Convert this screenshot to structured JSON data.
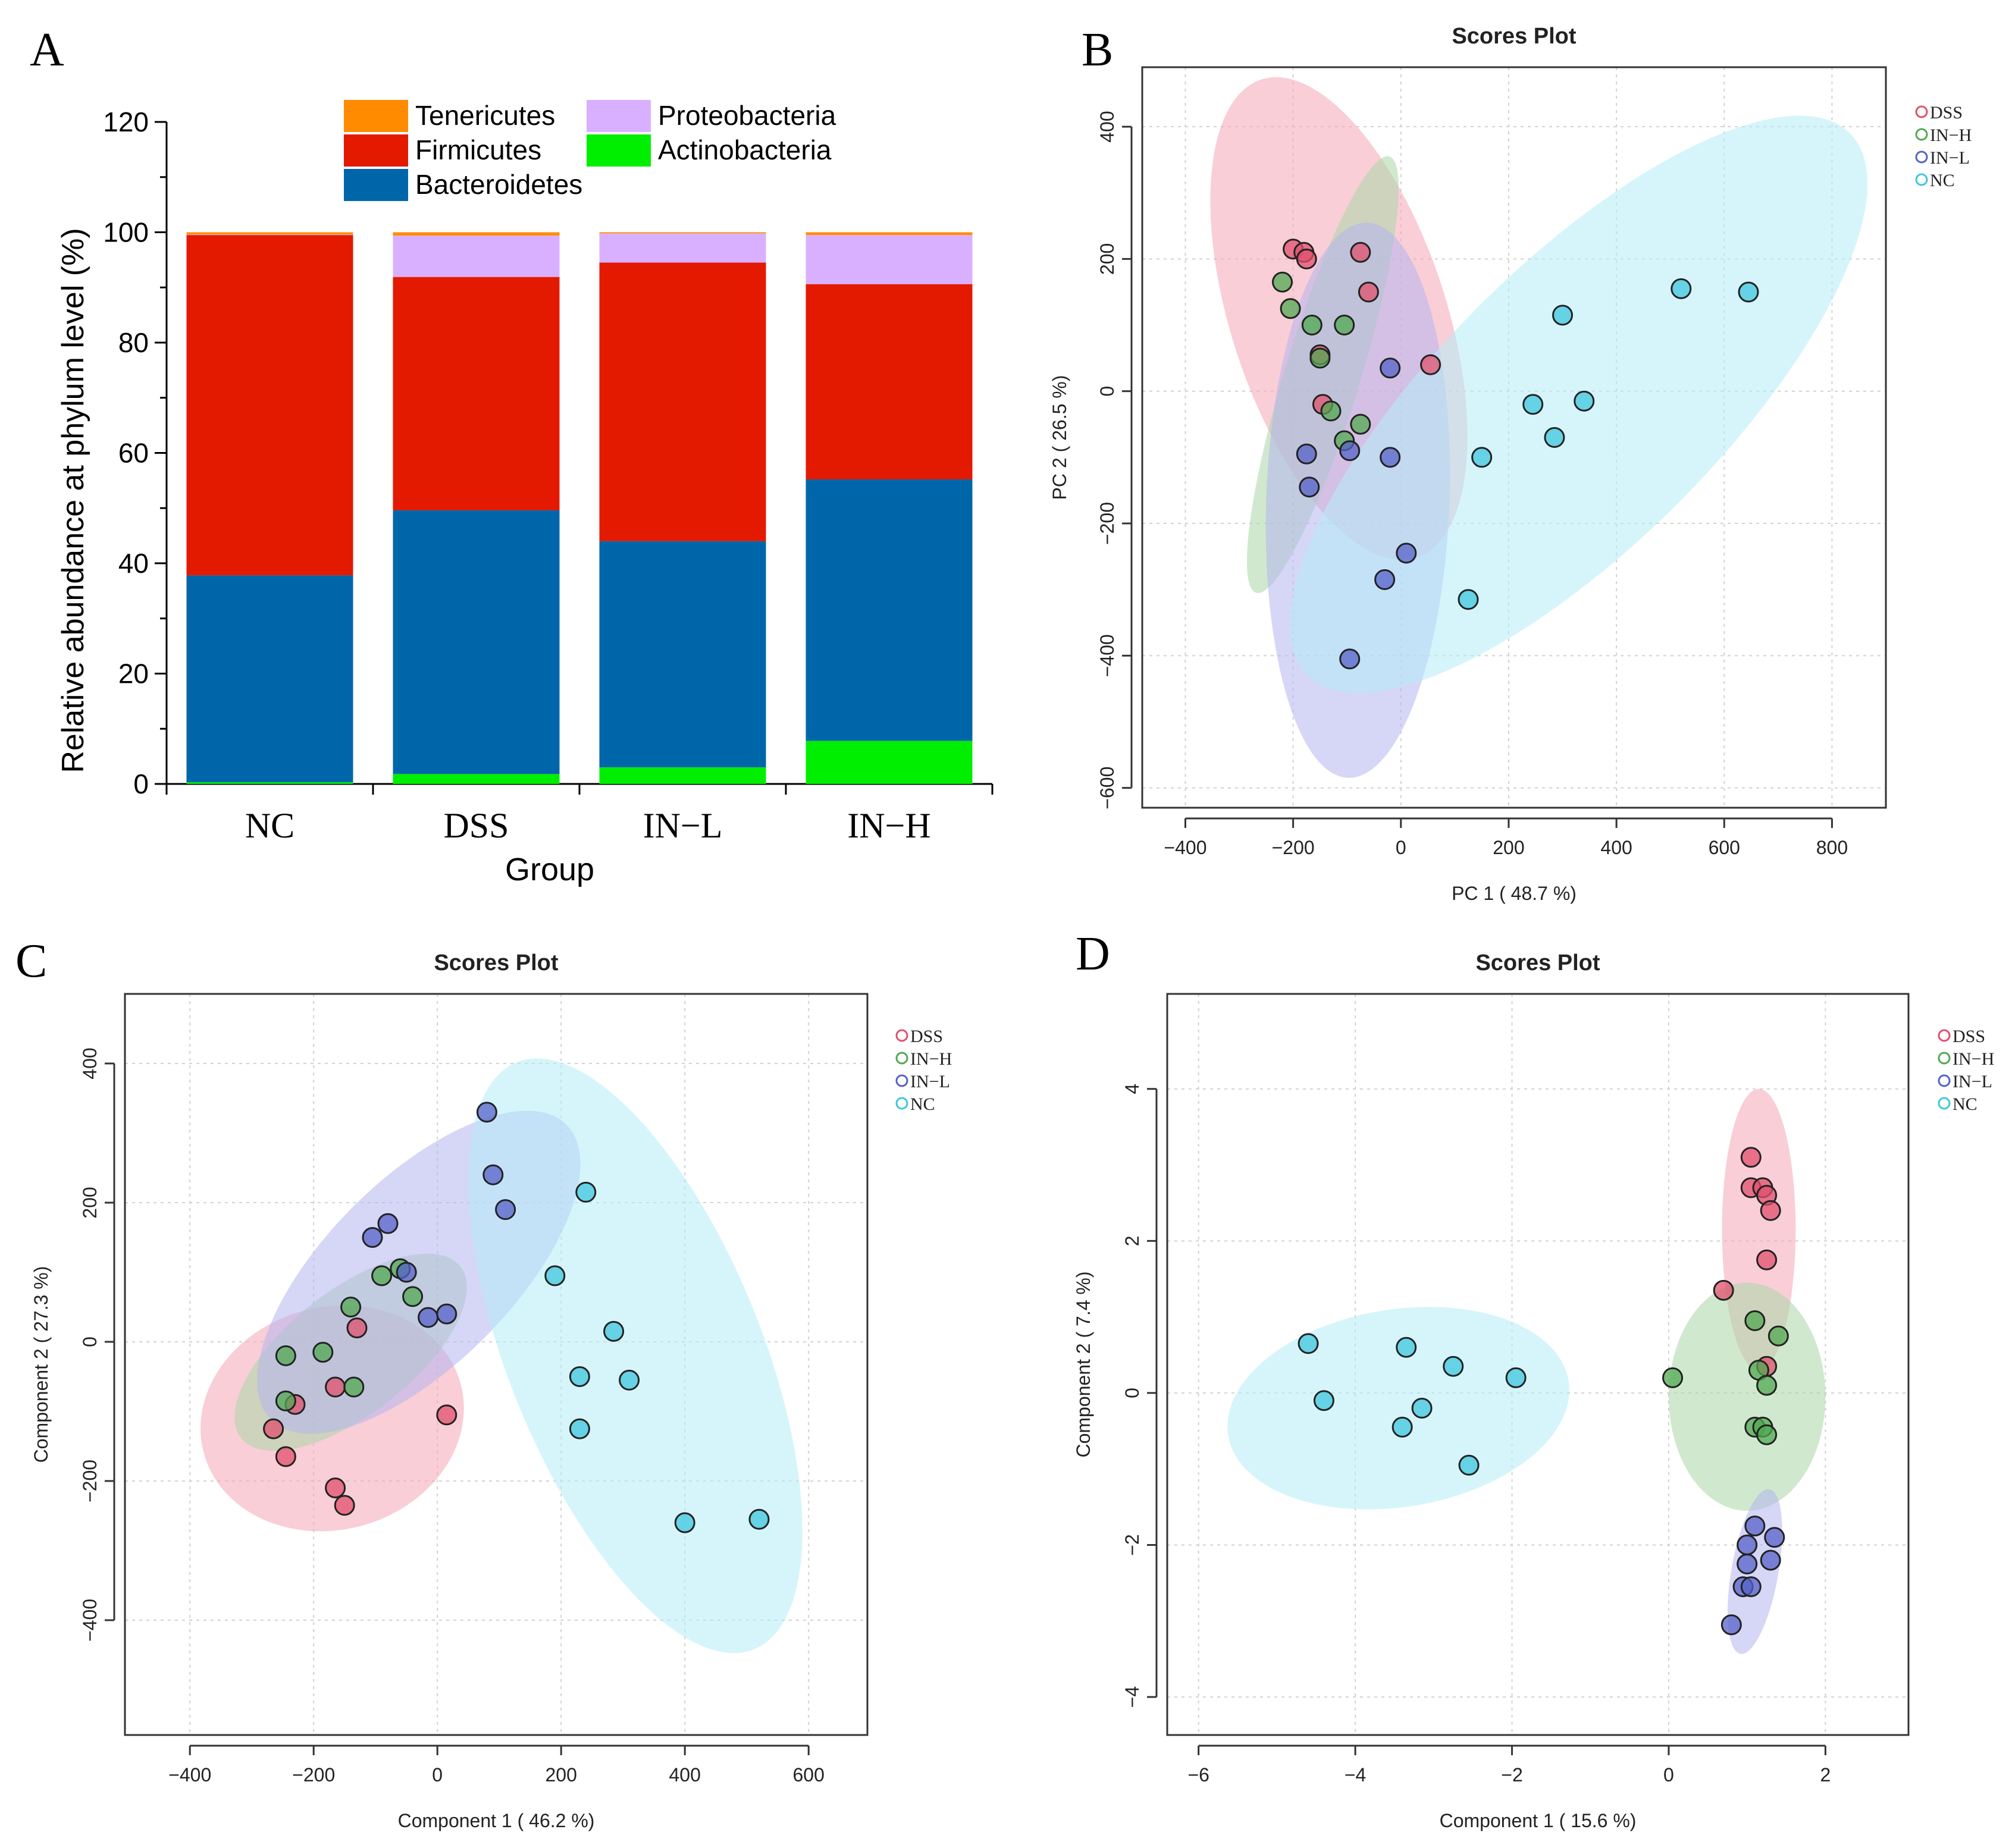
{
  "panel_labels": [
    "A",
    "B",
    "C",
    "D"
  ],
  "chart_data": [
    {
      "panel": "A",
      "type": "bar",
      "stacked": true,
      "xlabel": "Group",
      "ylabel": "Relative abundance at phylum level (%)",
      "ylim": [
        0,
        120
      ],
      "yticks": [
        0,
        20,
        40,
        60,
        80,
        100,
        120
      ],
      "categories": [
        "NC",
        "DSS",
        "IN−L",
        "IN−H"
      ],
      "legend": [
        "Tenericutes",
        "Proteobacteria",
        "Firmicutes",
        "Actinobacteria",
        "Bacteroidetes"
      ],
      "series": [
        {
          "name": "Actinobacteria",
          "color": "#00ee00",
          "values": [
            0.3,
            1.8,
            3.0,
            7.8
          ]
        },
        {
          "name": "Bacteroidetes",
          "color": "#0066aa",
          "values": [
            37.5,
            47.8,
            41.0,
            47.4
          ]
        },
        {
          "name": "Firmicutes",
          "color": "#e31a00",
          "values": [
            61.7,
            42.3,
            50.5,
            35.4
          ]
        },
        {
          "name": "Proteobacteria",
          "color": "#d9b0ff",
          "values": [
            0.1,
            7.5,
            5.3,
            8.9
          ]
        },
        {
          "name": "Tenericutes",
          "color": "#ff8c00",
          "values": [
            0.4,
            0.6,
            0.2,
            0.5
          ]
        }
      ]
    },
    {
      "panel": "B",
      "type": "scatter",
      "title": "Scores Plot",
      "xlabel": "PC 1 ( 48.7 %)",
      "ylabel": "PC 2 ( 26.5 %)",
      "xlim": [
        -480,
        900
      ],
      "ylim": [
        -630,
        490
      ],
      "xticks": [
        -400,
        -200,
        0,
        200,
        400,
        600,
        800
      ],
      "yticks": [
        -600,
        -400,
        -200,
        0,
        200,
        400
      ],
      "grid": true,
      "legend_position": "top-right",
      "legend": [
        "DSS",
        "IN−H",
        "IN−L",
        "NC"
      ],
      "series": [
        {
          "name": "DSS",
          "color": "#e0506e",
          "fill": "#f4a6b7",
          "ellipse": {
            "cx": -115,
            "cy": 110,
            "rx": 200,
            "ry": 380,
            "angle_deg": -18
          },
          "points": [
            [
              -200,
              215
            ],
            [
              -180,
              210
            ],
            [
              -175,
              200
            ],
            [
              -75,
              210
            ],
            [
              -60,
              150
            ],
            [
              -150,
              55
            ],
            [
              -145,
              -20
            ],
            [
              55,
              40
            ]
          ]
        },
        {
          "name": "IN−H",
          "color": "#52a852",
          "fill": "#a9d7a6",
          "ellipse": {
            "cx": -145,
            "cy": 25,
            "rx": 70,
            "ry": 345,
            "angle_deg": 17
          },
          "points": [
            [
              -220,
              165
            ],
            [
              -205,
              125
            ],
            [
              -165,
              100
            ],
            [
              -105,
              100
            ],
            [
              -150,
              50
            ],
            [
              -130,
              -30
            ],
            [
              -105,
              -75
            ],
            [
              -75,
              -50
            ]
          ]
        },
        {
          "name": "IN−L",
          "color": "#5561c8",
          "fill": "#b4b4ee",
          "ellipse": {
            "cx": -80,
            "cy": -165,
            "rx": 170,
            "ry": 420,
            "angle_deg": 2
          },
          "points": [
            [
              -20,
              35
            ],
            [
              -175,
              -95
            ],
            [
              -170,
              -145
            ],
            [
              -95,
              -90
            ],
            [
              -20,
              -100
            ],
            [
              10,
              -245
            ],
            [
              -30,
              -285
            ],
            [
              -95,
              -405
            ]
          ]
        },
        {
          "name": "NC",
          "color": "#3fc6de",
          "fill": "#b4ecf7",
          "ellipse": {
            "cx": 330,
            "cy": -20,
            "rx": 260,
            "ry": 580,
            "angle_deg": 45
          },
          "points": [
            [
              520,
              155
            ],
            [
              645,
              150
            ],
            [
              300,
              115
            ],
            [
              245,
              -20
            ],
            [
              340,
              -15
            ],
            [
              285,
              -70
            ],
            [
              150,
              -100
            ],
            [
              125,
              -315
            ]
          ]
        }
      ]
    },
    {
      "panel": "C",
      "type": "scatter",
      "title": "Scores Plot",
      "xlabel": "Component 1 ( 46.2 %)",
      "ylabel": "Component 2 ( 27.3 %)",
      "xlim": [
        -505,
        695
      ],
      "ylim": [
        -565,
        500
      ],
      "xticks": [
        -400,
        -200,
        0,
        200,
        400,
        600
      ],
      "yticks": [
        -400,
        -200,
        0,
        200,
        400
      ],
      "grid": true,
      "legend_position": "top-right",
      "legend": [
        "DSS",
        "IN−H",
        "IN−L",
        "NC"
      ],
      "series": [
        {
          "name": "DSS",
          "color": "#e0506e",
          "fill": "#f4a6b7",
          "ellipse": {
            "cx": -170,
            "cy": -110,
            "rx": 215,
            "ry": 160,
            "angle_deg": -15
          },
          "points": [
            [
              -130,
              20
            ],
            [
              -165,
              -65
            ],
            [
              -230,
              -90
            ],
            [
              -265,
              -125
            ],
            [
              -245,
              -165
            ],
            [
              -165,
              -210
            ],
            [
              -150,
              -235
            ],
            [
              15,
              -105
            ]
          ]
        },
        {
          "name": "IN−H",
          "color": "#52a852",
          "fill": "#a9d7a6",
          "ellipse": {
            "cx": -140,
            "cy": -15,
            "rx": 100,
            "ry": 200,
            "angle_deg": 52
          },
          "points": [
            [
              -60,
              105
            ],
            [
              -90,
              95
            ],
            [
              -40,
              65
            ],
            [
              -140,
              50
            ],
            [
              -185,
              -15
            ],
            [
              -245,
              -20
            ],
            [
              -135,
              -65
            ],
            [
              -245,
              -85
            ]
          ]
        },
        {
          "name": "IN−L",
          "color": "#5561c8",
          "fill": "#b4b4ee",
          "ellipse": {
            "cx": -30,
            "cy": 100,
            "rx": 150,
            "ry": 300,
            "angle_deg": 45
          },
          "points": [
            [
              80,
              330
            ],
            [
              90,
              240
            ],
            [
              110,
              190
            ],
            [
              -80,
              170
            ],
            [
              -105,
              150
            ],
            [
              -50,
              100
            ],
            [
              -15,
              35
            ],
            [
              15,
              40
            ]
          ]
        },
        {
          "name": "NC",
          "color": "#3fc6de",
          "fill": "#b4ecf7",
          "ellipse": {
            "cx": 320,
            "cy": -20,
            "rx": 205,
            "ry": 455,
            "angle_deg": -22
          },
          "points": [
            [
              240,
              215
            ],
            [
              190,
              95
            ],
            [
              285,
              15
            ],
            [
              230,
              -50
            ],
            [
              310,
              -55
            ],
            [
              230,
              -125
            ],
            [
              400,
              -260
            ],
            [
              520,
              -255
            ]
          ]
        }
      ]
    },
    {
      "panel": "D",
      "type": "scatter",
      "title": "Scores Plot",
      "xlabel": "Component 1 ( 15.6 %)",
      "ylabel": "Component 2 ( 7.4 %)",
      "xlim": [
        -6.4,
        3.06
      ],
      "ylim": [
        -4.5,
        5.25
      ],
      "xticks": [
        -6,
        -4,
        -2,
        0,
        2
      ],
      "yticks": [
        -4,
        -2,
        0,
        2,
        4
      ],
      "grid": true,
      "legend_position": "top-right",
      "legend": [
        "DSS",
        "IN−H",
        "IN−L",
        "NC"
      ],
      "series": [
        {
          "name": "DSS",
          "color": "#e0506e",
          "fill": "#f4a6b7",
          "ellipse": {
            "cx": 1.15,
            "cy": 2.15,
            "rx": 0.47,
            "ry": 1.85,
            "angle_deg": 0
          },
          "points": [
            [
              1.05,
              3.1
            ],
            [
              1.05,
              2.7
            ],
            [
              1.2,
              2.7
            ],
            [
              1.25,
              2.6
            ],
            [
              1.3,
              2.4
            ],
            [
              1.25,
              1.75
            ],
            [
              0.7,
              1.35
            ],
            [
              1.25,
              0.35
            ]
          ]
        },
        {
          "name": "IN−H",
          "color": "#52a852",
          "fill": "#a9d7a6",
          "ellipse": {
            "cx": 1.0,
            "cy": -0.05,
            "rx": 1.0,
            "ry": 1.5,
            "angle_deg": 0
          },
          "points": [
            [
              0.05,
              0.2
            ],
            [
              1.1,
              0.95
            ],
            [
              1.4,
              0.75
            ],
            [
              1.15,
              0.3
            ],
            [
              1.25,
              0.1
            ],
            [
              1.1,
              -0.45
            ],
            [
              1.2,
              -0.45
            ],
            [
              1.25,
              -0.55
            ]
          ]
        },
        {
          "name": "IN−L",
          "color": "#5561c8",
          "fill": "#b4b4ee",
          "ellipse": {
            "cx": 1.1,
            "cy": -2.35,
            "rx": 0.3,
            "ry": 1.1,
            "angle_deg": 10
          },
          "points": [
            [
              1.1,
              -1.75
            ],
            [
              1.35,
              -1.9
            ],
            [
              1.0,
              -2.0
            ],
            [
              1.0,
              -2.25
            ],
            [
              1.3,
              -2.2
            ],
            [
              0.95,
              -2.55
            ],
            [
              1.05,
              -2.55
            ],
            [
              0.8,
              -3.05
            ]
          ]
        },
        {
          "name": "NC",
          "color": "#3fc6de",
          "fill": "#b4ecf7",
          "ellipse": {
            "cx": -3.45,
            "cy": -0.2,
            "rx": 2.2,
            "ry": 1.3,
            "angle_deg": -9
          },
          "points": [
            [
              -4.6,
              0.65
            ],
            [
              -3.35,
              0.6
            ],
            [
              -2.75,
              0.35
            ],
            [
              -1.95,
              0.2
            ],
            [
              -4.4,
              -0.1
            ],
            [
              -3.15,
              -0.2
            ],
            [
              -3.4,
              -0.45
            ],
            [
              -2.55,
              -0.95
            ]
          ]
        }
      ]
    }
  ]
}
